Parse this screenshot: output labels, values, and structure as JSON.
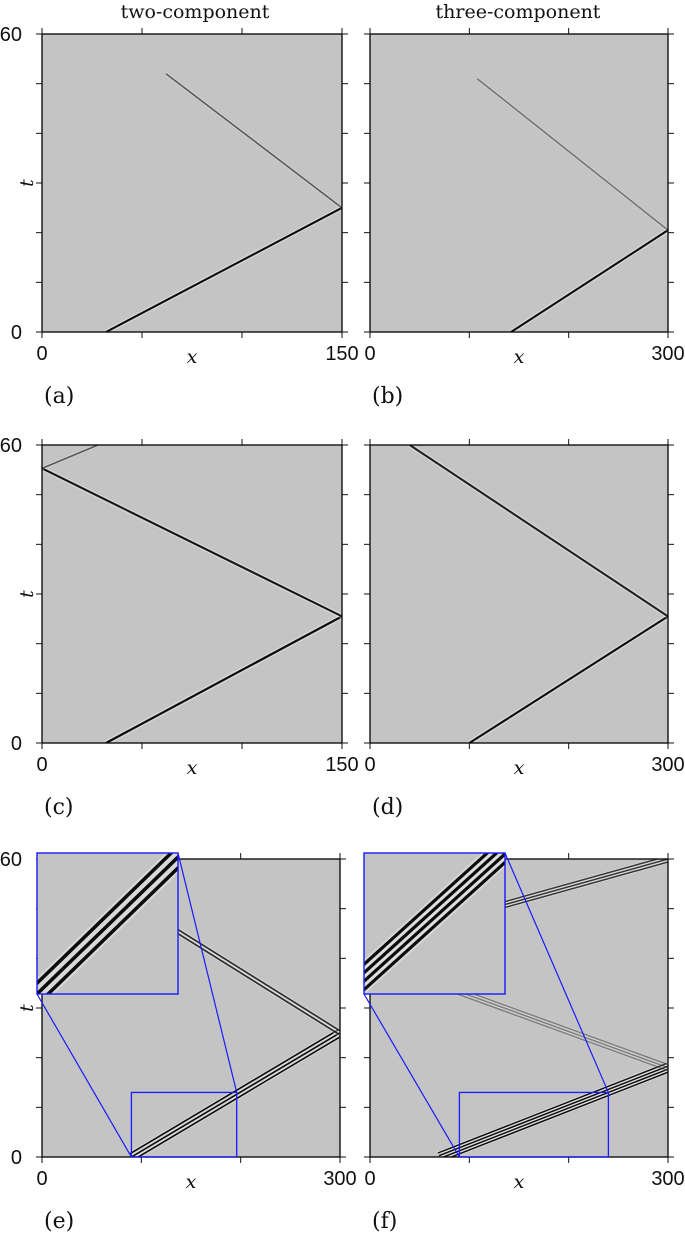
{
  "column_titles": [
    "two-component",
    "three-component"
  ],
  "chart_data": [
    {
      "panel": "(a)",
      "type": "heatmap",
      "column": "two-component",
      "xlabel": "x",
      "ylabel": "t",
      "xlim": [
        0,
        150
      ],
      "ylim": [
        0,
        60
      ],
      "x_tick_labels": [
        "0",
        "150"
      ],
      "y_tick_labels": [
        "0",
        "60"
      ],
      "features": [
        {
          "kind": "front",
          "x0": 32,
          "t0": 0,
          "x1": 150,
          "t1": 25,
          "intensity": 1.0,
          "width": 1.3
        },
        {
          "kind": "front",
          "x0": 150,
          "t0": 25,
          "x1": 62,
          "t1": 52,
          "intensity": 0.6,
          "width": 1.0
        }
      ]
    },
    {
      "panel": "(b)",
      "type": "heatmap",
      "column": "three-component",
      "xlabel": "x",
      "ylabel": "t",
      "xlim": [
        0,
        300
      ],
      "ylim": [
        0,
        60
      ],
      "x_tick_labels": [
        "0",
        "300"
      ],
      "y_tick_labels": [],
      "features": [
        {
          "kind": "front",
          "x0": 142,
          "t0": 0,
          "x1": 300,
          "t1": 20.5,
          "intensity": 1.0,
          "width": 1.3
        },
        {
          "kind": "front",
          "x0": 300,
          "t0": 20.5,
          "x1": 108,
          "t1": 51,
          "intensity": 0.45,
          "width": 1.0
        }
      ]
    },
    {
      "panel": "(c)",
      "type": "heatmap",
      "column": "two-component",
      "xlabel": "x",
      "ylabel": "t",
      "xlim": [
        0,
        150
      ],
      "ylim": [
        0,
        60
      ],
      "x_tick_labels": [
        "0",
        "150"
      ],
      "y_tick_labels": [
        "0",
        "60"
      ],
      "features": [
        {
          "kind": "front",
          "x0": 32,
          "t0": 0,
          "x1": 150,
          "t1": 25.5,
          "intensity": 1.0,
          "width": 1.4
        },
        {
          "kind": "front",
          "x0": 150,
          "t0": 25.5,
          "x1": 0,
          "t1": 55.3,
          "intensity": 0.95,
          "width": 1.3
        },
        {
          "kind": "front",
          "x0": 0,
          "t0": 55.3,
          "x1": 28,
          "t1": 60,
          "intensity": 0.6,
          "width": 1.0
        }
      ]
    },
    {
      "panel": "(d)",
      "type": "heatmap",
      "column": "three-component",
      "xlabel": "x",
      "ylabel": "t",
      "xlim": [
        0,
        300
      ],
      "ylim": [
        0,
        60
      ],
      "x_tick_labels": [
        "0",
        "300"
      ],
      "y_tick_labels": [],
      "features": [
        {
          "kind": "front",
          "x0": 100,
          "t0": 0,
          "x1": 300,
          "t1": 25.5,
          "intensity": 1.0,
          "width": 1.3
        },
        {
          "kind": "front",
          "x0": 300,
          "t0": 25.5,
          "x1": 40,
          "t1": 60,
          "intensity": 0.9,
          "width": 1.3
        }
      ]
    },
    {
      "panel": "(e)",
      "type": "heatmap",
      "column": "two-component",
      "xlabel": "x",
      "ylabel": "t",
      "xlim": [
        0,
        300
      ],
      "ylim": [
        0,
        60
      ],
      "x_tick_labels": [
        "0",
        "300"
      ],
      "y_tick_labels": [
        "0",
        "60"
      ],
      "features": [
        {
          "kind": "front",
          "x0": 90,
          "t0": 0,
          "x1": 300,
          "t1": 25,
          "intensity": 1.0,
          "width": 1.0,
          "copies": 3,
          "spacing": 1.6
        },
        {
          "kind": "front",
          "x0": 300,
          "t0": 25,
          "x1": 100,
          "t1": 50,
          "intensity": 0.85,
          "width": 1.0,
          "copies": 2,
          "spacing": 1.6
        }
      ],
      "zoom_box": {
        "x": [
          90,
          196
        ],
        "t": [
          0,
          13
        ],
        "inset_anchor": "top-left"
      }
    },
    {
      "panel": "(f)",
      "type": "heatmap",
      "column": "three-component",
      "xlabel": "x",
      "ylabel": "t",
      "xlim": [
        0,
        300
      ],
      "ylim": [
        0,
        60
      ],
      "x_tick_labels": [
        "0",
        "300"
      ],
      "y_tick_labels": [],
      "features": [
        {
          "kind": "front",
          "x0": 70,
          "t0": 0,
          "x1": 300,
          "t1": 18,
          "intensity": 1.0,
          "width": 0.9,
          "copies": 4,
          "spacing": 1.3
        },
        {
          "kind": "front",
          "x0": 130,
          "t0": 50.5,
          "x1": 300,
          "t1": 60,
          "intensity": 0.8,
          "width": 0.9,
          "copies": 3,
          "spacing": 1.3
        },
        {
          "kind": "front",
          "x0": 300,
          "t0": 18,
          "x1": 80,
          "t1": 34,
          "intensity": 0.4,
          "width": 0.9,
          "copies": 3,
          "spacing": 1.3
        }
      ],
      "zoom_box": {
        "x": [
          90,
          240
        ],
        "t": [
          0,
          13
        ],
        "inset_anchor": "top-left"
      }
    }
  ],
  "colors": {
    "background": "#c4c4c4",
    "front": "#000000",
    "zoom_box": "#1a1aff",
    "frame": "#111111"
  }
}
